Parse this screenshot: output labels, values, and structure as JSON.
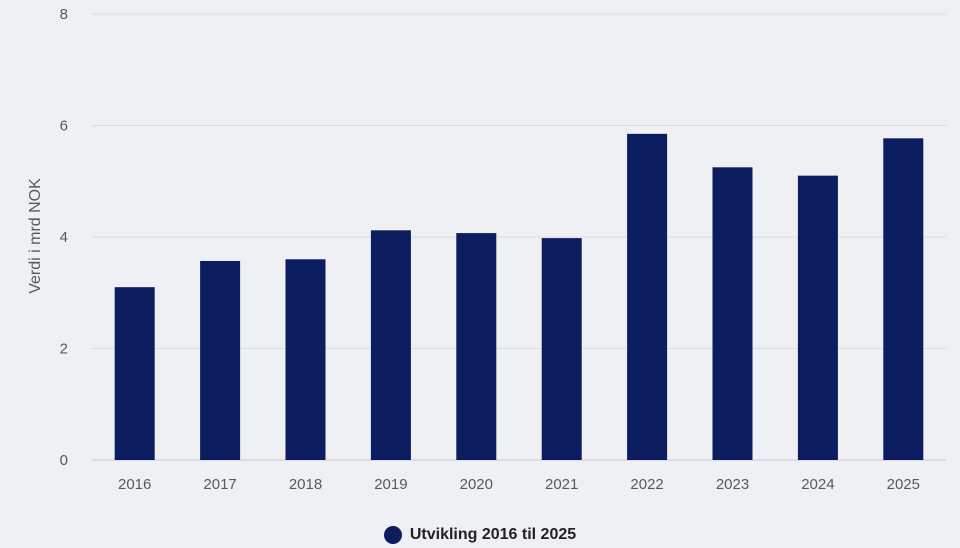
{
  "chart_data": {
    "type": "bar",
    "categories": [
      "2016",
      "2017",
      "2018",
      "2019",
      "2020",
      "2021",
      "2022",
      "2023",
      "2024",
      "2025"
    ],
    "series": [
      {
        "name": "Utvikling 2016 til 2025",
        "values": [
          3.1,
          3.57,
          3.6,
          4.12,
          4.07,
          3.98,
          5.85,
          5.25,
          5.1,
          5.77
        ]
      }
    ],
    "ylabel": "Verdi i mrd NOK",
    "xlabel": "",
    "ylim": [
      0,
      8
    ],
    "yticks": [
      0,
      2,
      4,
      6,
      8
    ],
    "grid": true,
    "legend_position": "bottom",
    "colors": {
      "bar": "#0c1d5f",
      "grid": "#d9dde3",
      "background": "#eef0f3"
    }
  }
}
